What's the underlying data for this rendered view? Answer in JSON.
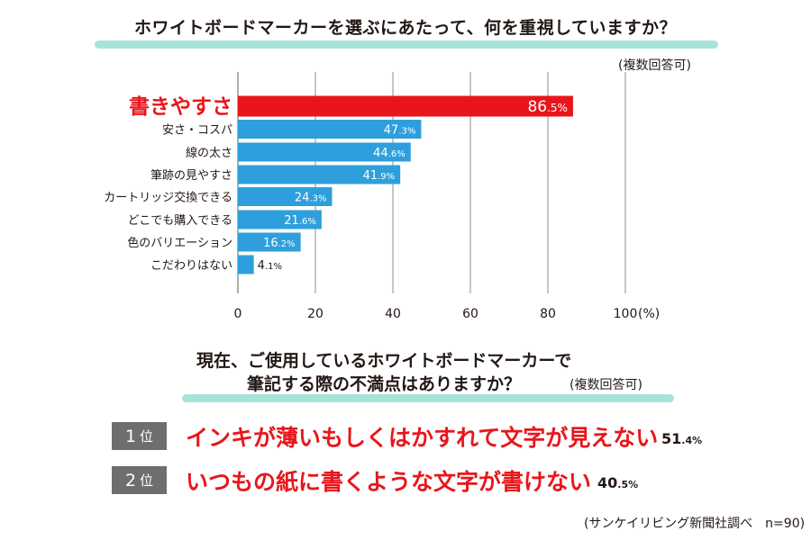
{
  "title": "ホワイトボードマーカーを選ぶにあたって、何を重視していますか？",
  "note": "(複数回答可)",
  "chart_data": {
    "type": "bar",
    "orientation": "horizontal",
    "categories": [
      "書きやすさ",
      "安さ・コスパ",
      "線の太さ",
      "筆跡の見やすさ",
      "カートリッジ交換できる",
      "どこでも購入できる",
      "色のバリエーション",
      "こだわりはない"
    ],
    "values": [
      86.5,
      47.3,
      44.6,
      41.9,
      24.3,
      21.6,
      16.2,
      4.1
    ],
    "value_labels": [
      {
        "int": "86",
        "dec": ".5%"
      },
      {
        "int": "47",
        "dec": ".3%"
      },
      {
        "int": "44",
        "dec": ".6%"
      },
      {
        "int": "41",
        "dec": ".9%"
      },
      {
        "int": "24",
        "dec": ".3%"
      },
      {
        "int": "21",
        "dec": ".6%"
      },
      {
        "int": "16",
        "dec": ".2%"
      },
      {
        "int": "4",
        "dec": ".1%"
      }
    ],
    "highlight_index": 0,
    "colors": {
      "highlight": "#e8161b",
      "bar": "#2e9fdc",
      "grid": "#8c8c8c"
    },
    "xlim": [
      0,
      100
    ],
    "xticks": [
      "0",
      "20",
      "40",
      "60",
      "80",
      "100"
    ],
    "xunit": "(%)",
    "grid": true
  },
  "question2": {
    "line1": "現在、ご使用しているホワイトボードマーカーで",
    "line2": "筆記する際の不満点はありますか？",
    "note": "(複数回答可)"
  },
  "rankings": [
    {
      "rank_num": "1",
      "rank_unit": "位",
      "text": "インキが薄いもしくはかすれて文字が見えない",
      "value_int": "51",
      "value_dec": ".4%"
    },
    {
      "rank_num": "2",
      "rank_unit": "位",
      "text": "いつもの紙に書くような文字が書けない",
      "value_int": "40",
      "value_dec": ".5%"
    }
  ],
  "source": "(サンケイリビング新聞社調べ　n=90)"
}
